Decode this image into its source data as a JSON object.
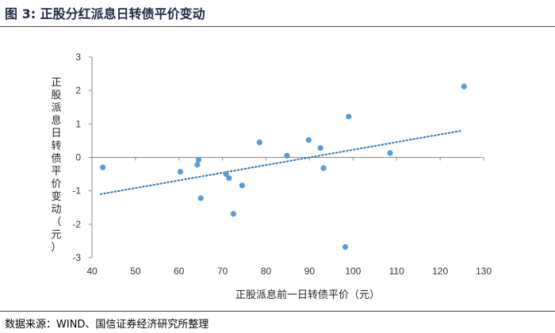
{
  "title": "图 3:  正股分红派息日转债平价变动",
  "source": "数据来源：WIND、国信证券经济研究所整理",
  "chart_data": {
    "type": "scatter",
    "title": "",
    "xlabel": "正股派息前一日转债平价（元）",
    "ylabel": "正股派息日转债平价变动（元）",
    "xlim": [
      40,
      130
    ],
    "ylim": [
      -3,
      3
    ],
    "xticks": [
      40,
      50,
      60,
      70,
      80,
      90,
      100,
      110,
      120,
      130
    ],
    "yticks": [
      -3,
      -2,
      -1,
      0,
      1,
      2,
      3
    ],
    "grid": false,
    "point_color": "#5b9bd5",
    "trendline": {
      "style": "dotted",
      "color": "#2e75b6",
      "x": [
        42,
        125
      ],
      "y": [
        -1.1,
        0.8
      ]
    },
    "series": [
      {
        "points": [
          [
            42.5,
            -0.3
          ],
          [
            60.3,
            -0.43
          ],
          [
            64.2,
            -0.22
          ],
          [
            64.5,
            -0.07
          ],
          [
            65.0,
            -1.22
          ],
          [
            70.8,
            -0.5
          ],
          [
            71.5,
            -0.62
          ],
          [
            72.5,
            -1.69
          ],
          [
            74.5,
            -0.84
          ],
          [
            78.5,
            0.45
          ],
          [
            84.8,
            0.05
          ],
          [
            89.8,
            0.52
          ],
          [
            92.5,
            0.28
          ],
          [
            93.2,
            -0.32
          ],
          [
            98.2,
            -2.68
          ],
          [
            99.0,
            1.22
          ],
          [
            108.5,
            0.13
          ],
          [
            125.5,
            2.12
          ]
        ]
      }
    ]
  }
}
